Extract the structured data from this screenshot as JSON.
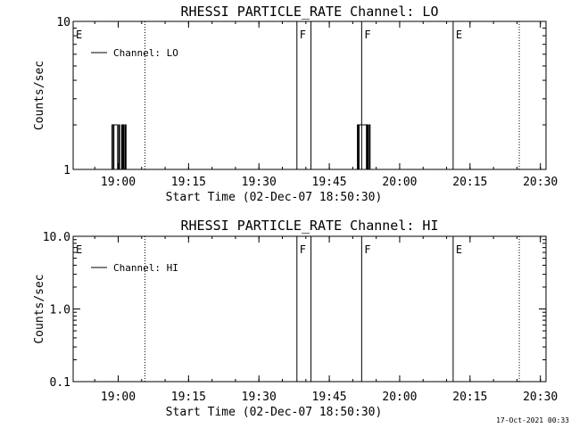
{
  "chart_data": [
    {
      "type": "line",
      "title": "RHESSI PARTICLE_RATE Channel: LO",
      "xlabel": "Start Time (02-Dec-07 18:50:30)",
      "ylabel": "Counts/sec",
      "ylog": true,
      "ylim": [
        1,
        10
      ],
      "yticks": [
        1,
        10
      ],
      "ytick_labels": [
        "1",
        "10"
      ],
      "xlim": [
        18.84,
        20.52
      ],
      "xticks": [
        "19:00",
        "19:15",
        "19:30",
        "19:45",
        "20:00",
        "20:15",
        "20:30"
      ],
      "legend": {
        "position": "top-left",
        "label": "Channel: LO"
      },
      "series": [
        {
          "name": "Channel: LO",
          "segments": [
            [
              [
                18.965,
                1
              ],
              [
                18.975,
                1
              ],
              [
                18.978,
                2
              ],
              [
                18.982,
                1
              ],
              [
                18.985,
                2
              ],
              [
                18.995,
                2
              ],
              [
                18.998,
                1
              ],
              [
                19.002,
                2
              ],
              [
                19.005,
                1
              ],
              [
                19.008,
                1
              ],
              [
                19.012,
                2
              ],
              [
                19.015,
                1
              ],
              [
                19.018,
                2
              ],
              [
                19.021,
                1
              ],
              [
                19.025,
                2
              ],
              [
                19.028,
                1
              ]
            ],
            [
              [
                19.847,
                1
              ],
              [
                19.85,
                2
              ],
              [
                19.853,
                1
              ],
              [
                19.856,
                2
              ],
              [
                19.86,
                2
              ],
              [
                19.875,
                2
              ],
              [
                19.878,
                2
              ],
              [
                19.882,
                1
              ],
              [
                19.885,
                2
              ],
              [
                19.888,
                1
              ],
              [
                19.892,
                2
              ],
              [
                19.895,
                1
              ]
            ]
          ]
        }
      ],
      "markers": [
        {
          "x": 18.84,
          "style": "solid",
          "label": "E"
        },
        {
          "x": 19.095,
          "style": "dotted",
          "label": ""
        },
        {
          "x": 19.635,
          "style": "solid",
          "label": "F"
        },
        {
          "x": 19.685,
          "style": "solid",
          "label": ""
        },
        {
          "x": 19.865,
          "style": "solid",
          "label": "F"
        },
        {
          "x": 20.19,
          "style": "solid",
          "label": "E"
        },
        {
          "x": 20.425,
          "style": "dotted",
          "label": ""
        }
      ]
    },
    {
      "type": "line",
      "title": "RHESSI PARTICLE_RATE Channel: HI",
      "xlabel": "Start Time (02-Dec-07 18:50:30)",
      "ylabel": "Counts/sec",
      "ylog": true,
      "ylim": [
        0.1,
        10
      ],
      "yticks": [
        0.1,
        1,
        10
      ],
      "ytick_labels": [
        "0.1",
        "1.0",
        "10.0"
      ],
      "xlim": [
        18.84,
        20.52
      ],
      "xticks": [
        "19:00",
        "19:15",
        "19:30",
        "19:45",
        "20:00",
        "20:15",
        "20:30"
      ],
      "legend": {
        "position": "top-left",
        "label": "Channel: HI"
      },
      "series": [
        {
          "name": "Channel: HI",
          "segments": []
        }
      ],
      "markers": [
        {
          "x": 18.84,
          "style": "solid",
          "label": "E"
        },
        {
          "x": 19.095,
          "style": "dotted",
          "label": ""
        },
        {
          "x": 19.635,
          "style": "solid",
          "label": "F"
        },
        {
          "x": 19.685,
          "style": "solid",
          "label": ""
        },
        {
          "x": 19.865,
          "style": "solid",
          "label": "F"
        },
        {
          "x": 20.19,
          "style": "solid",
          "label": "E"
        },
        {
          "x": 20.425,
          "style": "dotted",
          "label": ""
        }
      ]
    }
  ],
  "footer": {
    "timestamp": "17-Oct-2021 00:33"
  }
}
